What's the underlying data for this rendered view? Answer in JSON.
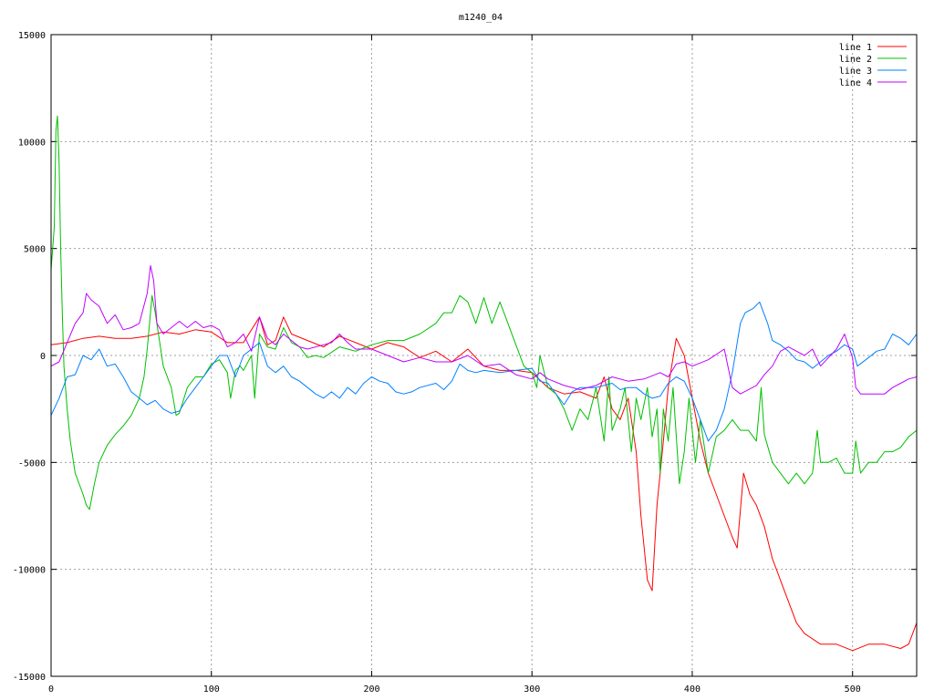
{
  "chart_data": {
    "type": "line",
    "title": "m1240_04",
    "xlabel": "",
    "ylabel": "",
    "xlim": [
      0,
      540
    ],
    "ylim": [
      -15000,
      15000
    ],
    "xticks": [
      0,
      100,
      200,
      300,
      400,
      500
    ],
    "yticks": [
      -15000,
      -10000,
      -5000,
      0,
      5000,
      10000,
      15000
    ],
    "grid": true,
    "legend_position": "top-right",
    "series": [
      {
        "name": "line 1",
        "color": "#ff0000",
        "x": [
          0,
          10,
          20,
          30,
          40,
          50,
          60,
          70,
          80,
          90,
          100,
          110,
          120,
          130,
          135,
          140,
          145,
          150,
          160,
          170,
          180,
          190,
          200,
          210,
          220,
          230,
          240,
          250,
          260,
          265,
          270,
          280,
          290,
          300,
          310,
          320,
          330,
          340,
          345,
          350,
          355,
          360,
          365,
          368,
          372,
          375,
          378,
          382,
          385,
          390,
          395,
          400,
          405,
          410,
          415,
          420,
          425,
          428,
          432,
          436,
          440,
          445,
          450,
          455,
          460,
          465,
          470,
          480,
          490,
          500,
          510,
          520,
          530,
          535,
          540
        ],
        "y": [
          500,
          600,
          800,
          900,
          800,
          800,
          900,
          1100,
          1000,
          1200,
          1100,
          600,
          600,
          1800,
          500,
          700,
          1800,
          1000,
          700,
          400,
          900,
          600,
          300,
          600,
          400,
          -100,
          200,
          -300,
          300,
          -100,
          -500,
          -700,
          -700,
          -800,
          -1500,
          -1800,
          -1700,
          -2000,
          -1000,
          -2500,
          -3000,
          -2000,
          -4500,
          -7500,
          -10500,
          -11000,
          -7000,
          -4000,
          -1500,
          800,
          0,
          -2000,
          -4000,
          -5500,
          -6500,
          -7500,
          -8500,
          -9000,
          -5500,
          -6500,
          -7000,
          -8000,
          -9500,
          -10500,
          -11500,
          -12500,
          -13000,
          -13500,
          -13500,
          -13800,
          -13500,
          -13500,
          -13700,
          -13500,
          -12500
        ]
      },
      {
        "name": "line 2",
        "color": "#00c000",
        "x": [
          0,
          2,
          3,
          4,
          5,
          6,
          7,
          8,
          10,
          12,
          15,
          20,
          22,
          24,
          27,
          30,
          35,
          40,
          45,
          50,
          55,
          58,
          60,
          62,
          63,
          65,
          68,
          70,
          75,
          78,
          80,
          85,
          90,
          95,
          100,
          105,
          110,
          112,
          115,
          118,
          120,
          125,
          127,
          130,
          135,
          140,
          145,
          150,
          155,
          160,
          165,
          170,
          180,
          190,
          200,
          210,
          220,
          230,
          240,
          245,
          250,
          255,
          260,
          265,
          270,
          275,
          280,
          285,
          290,
          295,
          300,
          303,
          305,
          310,
          315,
          320,
          325,
          330,
          335,
          340,
          342,
          345,
          348,
          350,
          355,
          358,
          362,
          365,
          368,
          372,
          375,
          378,
          380,
          382,
          385,
          388,
          392,
          395,
          398,
          402,
          405,
          410,
          415,
          420,
          425,
          430,
          435,
          440,
          443,
          445,
          450,
          455,
          460,
          465,
          470,
          475,
          478,
          480,
          485,
          490,
          495,
          500,
          502,
          505,
          510,
          515,
          520,
          525,
          530,
          535,
          540
        ],
        "y": [
          4000,
          6000,
          10500,
          11200,
          9000,
          5000,
          2000,
          -500,
          -2500,
          -4000,
          -5500,
          -6500,
          -7000,
          -7200,
          -6000,
          -5000,
          -4200,
          -3700,
          -3300,
          -2800,
          -2000,
          -1000,
          300,
          2000,
          2800,
          2000,
          500,
          -500,
          -1500,
          -2800,
          -2700,
          -1500,
          -1000,
          -1000,
          -400,
          -200,
          -800,
          -2000,
          -700,
          -500,
          -700,
          0,
          -2000,
          1000,
          400,
          300,
          1300,
          600,
          400,
          -100,
          0,
          -100,
          400,
          200,
          500,
          700,
          700,
          1000,
          1500,
          2000,
          2000,
          2800,
          2500,
          1500,
          2700,
          1500,
          2500,
          1500,
          500,
          -500,
          -800,
          -1500,
          0,
          -1500,
          -1800,
          -2500,
          -3500,
          -2500,
          -3000,
          -1500,
          -2500,
          -4000,
          -1000,
          -3500,
          -2500,
          -1500,
          -4500,
          -2000,
          -3000,
          -1500,
          -3800,
          -2500,
          -5500,
          -2500,
          -4000,
          -1500,
          -6000,
          -4500,
          -2000,
          -5000,
          -3000,
          -5500,
          -3800,
          -3500,
          -3000,
          -3500,
          -3500,
          -4000,
          -1500,
          -3700,
          -5000,
          -5500,
          -6000,
          -5500,
          -6000,
          -5500,
          -3500,
          -5000,
          -5000,
          -4800,
          -5500,
          -5500,
          -4000,
          -5500,
          -5000,
          -5000,
          -4500,
          -4500,
          -4300,
          -3800,
          -3500
        ]
      },
      {
        "name": "line 3",
        "color": "#0080ff",
        "x": [
          0,
          5,
          10,
          15,
          20,
          25,
          30,
          35,
          40,
          45,
          50,
          55,
          60,
          65,
          70,
          75,
          80,
          85,
          90,
          95,
          100,
          105,
          110,
          115,
          120,
          125,
          130,
          135,
          140,
          145,
          150,
          155,
          160,
          165,
          170,
          175,
          180,
          185,
          190,
          195,
          200,
          205,
          210,
          215,
          220,
          225,
          230,
          240,
          245,
          250,
          255,
          260,
          265,
          270,
          280,
          290,
          300,
          305,
          310,
          320,
          325,
          330,
          340,
          350,
          355,
          360,
          365,
          370,
          375,
          380,
          385,
          390,
          395,
          400,
          405,
          410,
          415,
          420,
          425,
          430,
          433,
          438,
          442,
          447,
          450,
          455,
          460,
          465,
          470,
          475,
          480,
          485,
          490,
          495,
          500,
          503,
          510,
          515,
          520,
          525,
          530,
          535,
          540
        ],
        "y": [
          -2800,
          -2000,
          -1000,
          -900,
          0,
          -200,
          300,
          -500,
          -400,
          -1000,
          -1700,
          -2000,
          -2300,
          -2100,
          -2500,
          -2700,
          -2600,
          -2000,
          -1500,
          -1000,
          -500,
          0,
          0,
          -1000,
          0,
          300,
          600,
          -500,
          -800,
          -500,
          -1000,
          -1200,
          -1500,
          -1800,
          -2000,
          -1700,
          -2000,
          -1500,
          -1800,
          -1300,
          -1000,
          -1200,
          -1300,
          -1700,
          -1800,
          -1700,
          -1500,
          -1300,
          -1600,
          -1200,
          -400,
          -700,
          -800,
          -700,
          -800,
          -700,
          -600,
          -1200,
          -1300,
          -2300,
          -1700,
          -1500,
          -1500,
          -1300,
          -1600,
          -1500,
          -1500,
          -1800,
          -2000,
          -1900,
          -1300,
          -1000,
          -1200,
          -2000,
          -3000,
          -4000,
          -3500,
          -2500,
          -800,
          1500,
          2000,
          2200,
          2500,
          1500,
          700,
          500,
          200,
          -200,
          -300,
          -600,
          -300,
          0,
          200,
          500,
          300,
          -500,
          -100,
          200,
          300,
          1000,
          800,
          500,
          1000
        ]
      },
      {
        "name": "line 4",
        "color": "#c000ff",
        "x": [
          0,
          5,
          10,
          15,
          20,
          22,
          25,
          30,
          35,
          40,
          45,
          50,
          55,
          60,
          62,
          64,
          66,
          70,
          75,
          80,
          85,
          90,
          95,
          100,
          105,
          110,
          115,
          120,
          125,
          130,
          135,
          140,
          145,
          150,
          155,
          160,
          170,
          175,
          180,
          185,
          190,
          200,
          210,
          220,
          230,
          240,
          250,
          260,
          270,
          280,
          290,
          300,
          305,
          310,
          320,
          330,
          340,
          350,
          360,
          370,
          380,
          385,
          390,
          395,
          400,
          410,
          420,
          425,
          430,
          440,
          445,
          450,
          455,
          460,
          470,
          475,
          480,
          490,
          495,
          500,
          502,
          505,
          510,
          520,
          525,
          530,
          535,
          540
        ],
        "y": [
          -500,
          -300,
          600,
          1500,
          2000,
          2900,
          2600,
          2300,
          1500,
          1900,
          1200,
          1300,
          1500,
          2900,
          4200,
          3500,
          1500,
          1000,
          1300,
          1600,
          1300,
          1600,
          1300,
          1400,
          1200,
          400,
          600,
          1000,
          200,
          1800,
          800,
          500,
          1000,
          700,
          400,
          300,
          500,
          600,
          1000,
          600,
          300,
          300,
          0,
          -300,
          -100,
          -300,
          -300,
          0,
          -500,
          -400,
          -900,
          -1100,
          -800,
          -1100,
          -1400,
          -1600,
          -1400,
          -1000,
          -1200,
          -1100,
          -800,
          -1000,
          -400,
          -300,
          -500,
          -200,
          300,
          -1500,
          -1800,
          -1400,
          -900,
          -500,
          200,
          400,
          0,
          300,
          -500,
          300,
          1000,
          -100,
          -1500,
          -1800,
          -1800,
          -1800,
          -1500,
          -1300,
          -1100,
          -1000
        ]
      }
    ]
  }
}
